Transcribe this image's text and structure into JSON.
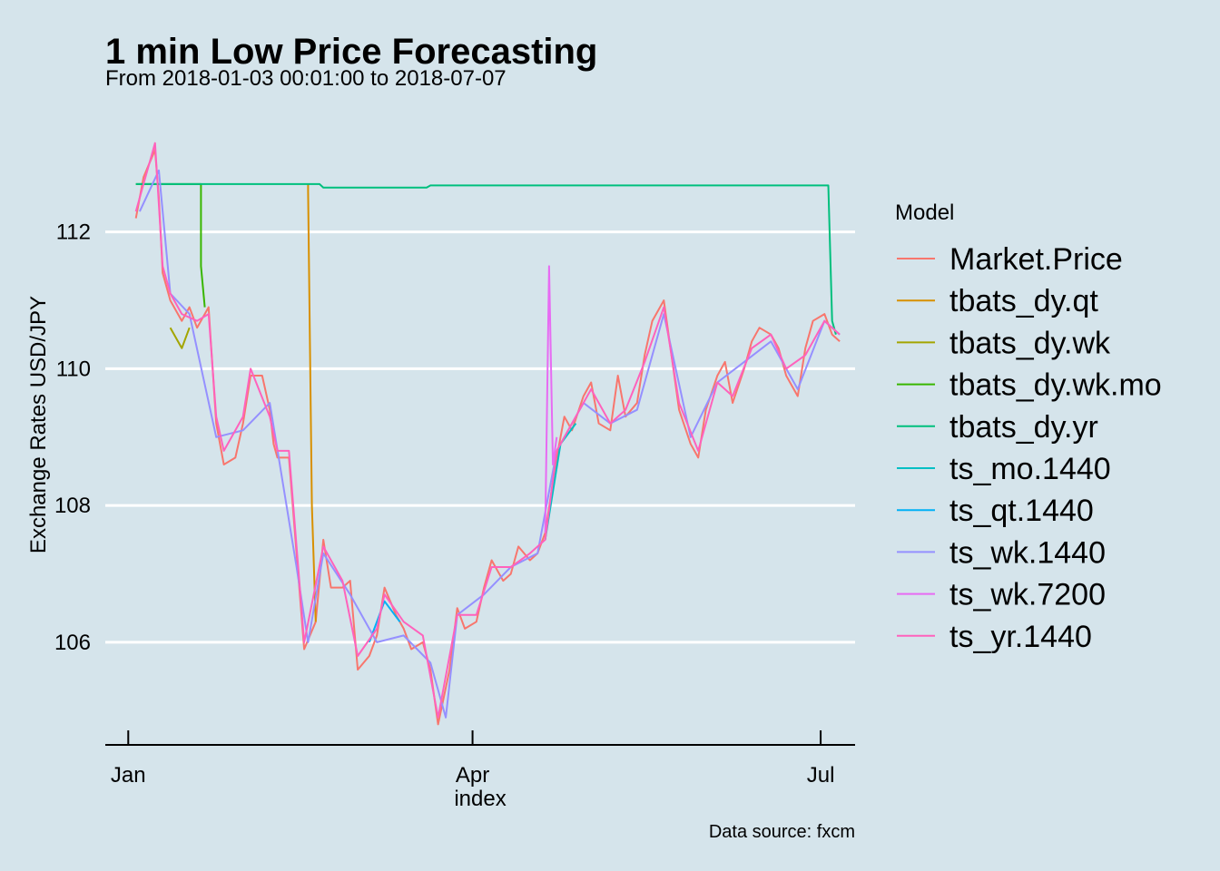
{
  "chart_data": {
    "type": "line",
    "title": "1 min Low Price Forecasting",
    "subtitle": "From 2018-01-03 00:01:00 to 2018-07-07",
    "xlabel": "index",
    "ylabel": "Exchange Rates USD/JPY",
    "caption": "Data source: fxcm",
    "legend_title": "Model",
    "legend_position": "right",
    "grid": "horizontal major only",
    "xlim": [
      "2017-12-26",
      "2018-07-10"
    ],
    "ylim": [
      104.5,
      113.8
    ],
    "x_ticks": [
      {
        "date": "2018-01-01",
        "label": "Jan"
      },
      {
        "date": "2018-04-01",
        "label": "Apr"
      },
      {
        "date": "2018-07-01",
        "label": "Jul"
      }
    ],
    "y_ticks": [
      106,
      108,
      110,
      112
    ],
    "series": [
      {
        "name": "Market.Price",
        "color": "#F8766D",
        "points": [
          [
            "2018-01-03",
            112.2
          ],
          [
            "2018-01-05",
            112.8
          ],
          [
            "2018-01-08",
            113.2
          ],
          [
            "2018-01-09",
            112.5
          ],
          [
            "2018-01-10",
            111.4
          ],
          [
            "2018-01-12",
            111.0
          ],
          [
            "2018-01-15",
            110.7
          ],
          [
            "2018-01-17",
            110.9
          ],
          [
            "2018-01-19",
            110.6
          ],
          [
            "2018-01-22",
            110.9
          ],
          [
            "2018-01-24",
            109.2
          ],
          [
            "2018-01-26",
            108.6
          ],
          [
            "2018-01-29",
            108.7
          ],
          [
            "2018-01-31",
            109.2
          ],
          [
            "2018-02-02",
            109.9
          ],
          [
            "2018-02-05",
            109.9
          ],
          [
            "2018-02-07",
            109.4
          ],
          [
            "2018-02-08",
            108.9
          ],
          [
            "2018-02-09",
            108.7
          ],
          [
            "2018-02-12",
            108.7
          ],
          [
            "2018-02-14",
            107.3
          ],
          [
            "2018-02-16",
            105.9
          ],
          [
            "2018-02-19",
            106.3
          ],
          [
            "2018-02-21",
            107.5
          ],
          [
            "2018-02-23",
            106.8
          ],
          [
            "2018-02-26",
            106.8
          ],
          [
            "2018-02-28",
            106.9
          ],
          [
            "2018-03-02",
            105.6
          ],
          [
            "2018-03-05",
            105.8
          ],
          [
            "2018-03-07",
            106.1
          ],
          [
            "2018-03-09",
            106.8
          ],
          [
            "2018-03-12",
            106.4
          ],
          [
            "2018-03-14",
            106.2
          ],
          [
            "2018-03-16",
            105.9
          ],
          [
            "2018-03-19",
            106.0
          ],
          [
            "2018-03-21",
            105.6
          ],
          [
            "2018-03-23",
            104.8
          ],
          [
            "2018-03-26",
            105.6
          ],
          [
            "2018-03-28",
            106.5
          ],
          [
            "2018-03-30",
            106.2
          ],
          [
            "2018-04-02",
            106.3
          ],
          [
            "2018-04-04",
            106.8
          ],
          [
            "2018-04-06",
            107.2
          ],
          [
            "2018-04-09",
            106.9
          ],
          [
            "2018-04-11",
            107.0
          ],
          [
            "2018-04-13",
            107.4
          ],
          [
            "2018-04-16",
            107.2
          ],
          [
            "2018-04-18",
            107.3
          ],
          [
            "2018-04-20",
            107.6
          ],
          [
            "2018-04-23",
            108.7
          ],
          [
            "2018-04-25",
            109.3
          ],
          [
            "2018-04-27",
            109.1
          ],
          [
            "2018-04-30",
            109.6
          ],
          [
            "2018-05-02",
            109.8
          ],
          [
            "2018-05-04",
            109.2
          ],
          [
            "2018-05-07",
            109.1
          ],
          [
            "2018-05-09",
            109.9
          ],
          [
            "2018-05-11",
            109.3
          ],
          [
            "2018-05-14",
            109.5
          ],
          [
            "2018-05-16",
            110.2
          ],
          [
            "2018-05-18",
            110.7
          ],
          [
            "2018-05-21",
            111.0
          ],
          [
            "2018-05-23",
            110.2
          ],
          [
            "2018-05-25",
            109.4
          ],
          [
            "2018-05-28",
            108.9
          ],
          [
            "2018-05-30",
            108.7
          ],
          [
            "2018-06-01",
            109.4
          ],
          [
            "2018-06-04",
            109.9
          ],
          [
            "2018-06-06",
            110.1
          ],
          [
            "2018-06-08",
            109.5
          ],
          [
            "2018-06-11",
            110.0
          ],
          [
            "2018-06-13",
            110.4
          ],
          [
            "2018-06-15",
            110.6
          ],
          [
            "2018-06-18",
            110.5
          ],
          [
            "2018-06-20",
            110.3
          ],
          [
            "2018-06-22",
            109.9
          ],
          [
            "2018-06-25",
            109.6
          ],
          [
            "2018-06-27",
            110.3
          ],
          [
            "2018-06-29",
            110.7
          ],
          [
            "2018-07-02",
            110.8
          ],
          [
            "2018-07-04",
            110.5
          ],
          [
            "2018-07-06",
            110.4
          ]
        ]
      },
      {
        "name": "tbats_dy.qt",
        "color": "#D89000",
        "points": [
          [
            "2018-02-17",
            112.7
          ],
          [
            "2018-02-17",
            112.6
          ],
          [
            "2018-02-18",
            108.0
          ],
          [
            "2018-02-19",
            106.3
          ]
        ]
      },
      {
        "name": "tbats_dy.wk",
        "color": "#A3A500",
        "points": [
          [
            "2018-01-12",
            110.6
          ],
          [
            "2018-01-15",
            110.3
          ],
          [
            "2018-01-17",
            110.6
          ]
        ]
      },
      {
        "name": "tbats_dy.wk.mo",
        "color": "#39B600",
        "points": [
          [
            "2018-01-03",
            112.7
          ],
          [
            "2018-01-20",
            112.7
          ],
          [
            "2018-01-20",
            111.5
          ],
          [
            "2018-01-21",
            110.9
          ]
        ]
      },
      {
        "name": "tbats_dy.yr",
        "color": "#00BF7D",
        "points": [
          [
            "2018-01-03",
            112.7
          ],
          [
            "2018-02-20",
            112.7
          ],
          [
            "2018-02-21",
            112.65
          ],
          [
            "2018-03-20",
            112.65
          ],
          [
            "2018-03-21",
            112.68
          ],
          [
            "2018-07-03",
            112.68
          ],
          [
            "2018-07-04",
            110.7
          ],
          [
            "2018-07-05",
            110.5
          ]
        ]
      },
      {
        "name": "ts_mo.1440",
        "color": "#00BFC4",
        "points": [
          [
            "2018-04-20",
            107.5
          ],
          [
            "2018-04-24",
            108.9
          ],
          [
            "2018-04-28",
            109.2
          ]
        ]
      },
      {
        "name": "ts_qt.1440",
        "color": "#00B0F6",
        "points": [
          [
            "2018-03-05",
            106.0
          ],
          [
            "2018-03-09",
            106.6
          ],
          [
            "2018-03-13",
            106.3
          ]
        ]
      },
      {
        "name": "ts_wk.1440",
        "color": "#9590FF",
        "points": [
          [
            "2018-01-04",
            112.3
          ],
          [
            "2018-01-09",
            112.9
          ],
          [
            "2018-01-12",
            111.1
          ],
          [
            "2018-01-17",
            110.8
          ],
          [
            "2018-01-24",
            109.0
          ],
          [
            "2018-01-31",
            109.1
          ],
          [
            "2018-02-07",
            109.5
          ],
          [
            "2018-02-14",
            107.1
          ],
          [
            "2018-02-17",
            106.0
          ],
          [
            "2018-02-21",
            107.3
          ],
          [
            "2018-02-28",
            106.7
          ],
          [
            "2018-03-07",
            106.0
          ],
          [
            "2018-03-14",
            106.1
          ],
          [
            "2018-03-21",
            105.7
          ],
          [
            "2018-03-25",
            104.9
          ],
          [
            "2018-03-28",
            106.4
          ],
          [
            "2018-04-04",
            106.7
          ],
          [
            "2018-04-11",
            107.1
          ],
          [
            "2018-04-18",
            107.3
          ],
          [
            "2018-04-23",
            108.8
          ],
          [
            "2018-04-30",
            109.5
          ],
          [
            "2018-05-07",
            109.2
          ],
          [
            "2018-05-14",
            109.4
          ],
          [
            "2018-05-21",
            110.8
          ],
          [
            "2018-05-28",
            109.0
          ],
          [
            "2018-06-04",
            109.8
          ],
          [
            "2018-06-11",
            110.1
          ],
          [
            "2018-06-18",
            110.4
          ],
          [
            "2018-06-25",
            109.7
          ],
          [
            "2018-07-02",
            110.7
          ],
          [
            "2018-07-06",
            110.5
          ]
        ]
      },
      {
        "name": "ts_wk.7200",
        "color": "#E76BF3",
        "points": [
          [
            "2018-04-20",
            107.6
          ],
          [
            "2018-04-21",
            111.5
          ],
          [
            "2018-04-22",
            108.6
          ],
          [
            "2018-04-23",
            109.0
          ]
        ]
      },
      {
        "name": "ts_yr.1440",
        "color": "#FF62BC",
        "points": [
          [
            "2018-01-03",
            112.3
          ],
          [
            "2018-01-05",
            112.7
          ],
          [
            "2018-01-08",
            113.3
          ],
          [
            "2018-01-10",
            111.5
          ],
          [
            "2018-01-12",
            111.1
          ],
          [
            "2018-01-15",
            110.8
          ],
          [
            "2018-01-19",
            110.7
          ],
          [
            "2018-01-22",
            110.8
          ],
          [
            "2018-01-24",
            109.3
          ],
          [
            "2018-01-26",
            108.8
          ],
          [
            "2018-01-31",
            109.3
          ],
          [
            "2018-02-02",
            110.0
          ],
          [
            "2018-02-07",
            109.3
          ],
          [
            "2018-02-09",
            108.8
          ],
          [
            "2018-02-12",
            108.8
          ],
          [
            "2018-02-14",
            107.4
          ],
          [
            "2018-02-16",
            106.0
          ],
          [
            "2018-02-21",
            107.4
          ],
          [
            "2018-02-26",
            106.9
          ],
          [
            "2018-03-02",
            105.8
          ],
          [
            "2018-03-07",
            106.2
          ],
          [
            "2018-03-09",
            106.7
          ],
          [
            "2018-03-14",
            106.3
          ],
          [
            "2018-03-19",
            106.1
          ],
          [
            "2018-03-23",
            104.9
          ],
          [
            "2018-03-28",
            106.4
          ],
          [
            "2018-04-02",
            106.4
          ],
          [
            "2018-04-06",
            107.1
          ],
          [
            "2018-04-11",
            107.1
          ],
          [
            "2018-04-16",
            107.3
          ],
          [
            "2018-04-20",
            107.5
          ],
          [
            "2018-04-23",
            108.8
          ],
          [
            "2018-04-27",
            109.2
          ],
          [
            "2018-05-02",
            109.7
          ],
          [
            "2018-05-07",
            109.2
          ],
          [
            "2018-05-11",
            109.4
          ],
          [
            "2018-05-16",
            110.1
          ],
          [
            "2018-05-21",
            110.9
          ],
          [
            "2018-05-25",
            109.5
          ],
          [
            "2018-05-30",
            108.8
          ],
          [
            "2018-06-04",
            109.8
          ],
          [
            "2018-06-08",
            109.6
          ],
          [
            "2018-06-13",
            110.3
          ],
          [
            "2018-06-18",
            110.5
          ],
          [
            "2018-06-22",
            110.0
          ],
          [
            "2018-06-27",
            110.2
          ],
          [
            "2018-07-02",
            110.7
          ],
          [
            "2018-07-06",
            110.5
          ]
        ]
      }
    ]
  }
}
